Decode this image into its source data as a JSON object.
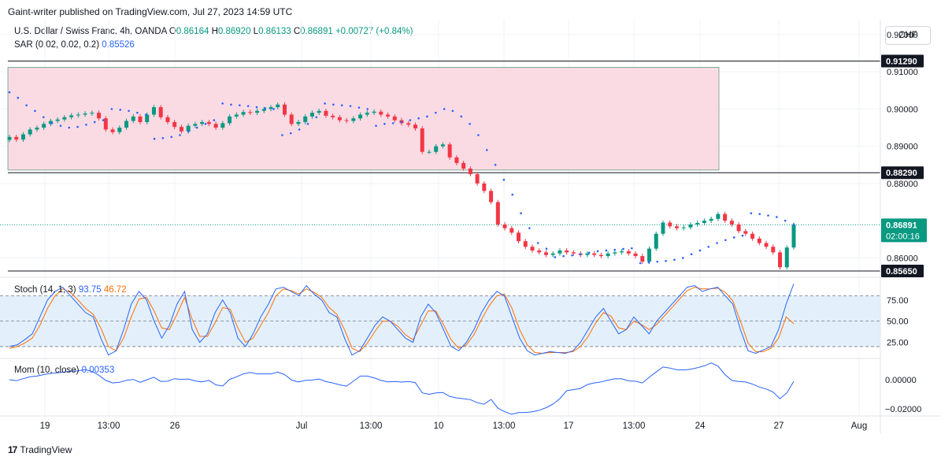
{
  "header": {
    "publisher": "Gaint-writer published on TradingView.com, Jul 27, 2023 14:59 UTC"
  },
  "legend": {
    "symbol": "U.S. Dollar / Swiss Franc, 4h, OANDA",
    "open_label": "O",
    "open": "0.86164",
    "high_label": "H",
    "high": "0.86920",
    "low_label": "L",
    "low": "0.86133",
    "close_label": "C",
    "close": "0.86891",
    "change": "+0.00727 (+0.84%)",
    "sar_name": "SAR (0.02, 0.02, 0.2)",
    "sar_value": "0.85526"
  },
  "currency_button": "CHF",
  "stoch": {
    "name": "Stoch (14, 1, 3)",
    "k": "93.75",
    "d": "46.72"
  },
  "mom": {
    "name": "Mom (10, close)",
    "value": "0.00353"
  },
  "footer": {
    "brand": "TradingView",
    "logo": "17"
  },
  "colors": {
    "up": "#089981",
    "down": "#f23645",
    "sar": "#2962ff",
    "zone": "#fadbe4",
    "stoch_k": "#2962ff",
    "stoch_d": "#ff6d00",
    "stoch_bg": "#e3f0fb"
  },
  "chart_data": {
    "type": "candlestick",
    "price_axis": {
      "ticks": [
        "0.92000",
        "0.91000",
        "0.90000",
        "0.89000",
        "0.88000",
        "0.86000"
      ],
      "range": [
        0.8548,
        0.924
      ]
    },
    "levels": [
      {
        "label": "0.91290",
        "value": 0.9129
      },
      {
        "label": "0.88290",
        "value": 0.8829
      },
      {
        "label": "0.85650",
        "value": 0.8565
      }
    ],
    "current_price": {
      "label": "0.86891",
      "countdown": "02:00:16",
      "value": 0.86891
    },
    "supply_zone": {
      "top": 0.9112,
      "bottom": 0.8836
    },
    "x_axis": {
      "labels": [
        "19",
        "13:00",
        "26",
        "Jul",
        "13:00",
        "10",
        "13:00",
        "17",
        "13:00",
        "24",
        "27",
        "Aug"
      ]
    },
    "candles_close": [
      0.8925,
      0.8918,
      0.8932,
      0.8945,
      0.895,
      0.896,
      0.8968,
      0.8972,
      0.8978,
      0.8983,
      0.8985,
      0.8988,
      0.899,
      0.8975,
      0.8945,
      0.8938,
      0.895,
      0.8968,
      0.898,
      0.8965,
      0.8985,
      0.9005,
      0.8978,
      0.8965,
      0.8952,
      0.894,
      0.8955,
      0.896,
      0.8965,
      0.896,
      0.895,
      0.8962,
      0.898,
      0.8985,
      0.8992,
      0.899,
      0.8995,
      0.9,
      0.9005,
      0.9012,
      0.8985,
      0.896,
      0.8965,
      0.898,
      0.899,
      0.8995,
      0.8982,
      0.8978,
      0.897,
      0.8968,
      0.8975,
      0.8985,
      0.899,
      0.8993,
      0.8985,
      0.898,
      0.897,
      0.8962,
      0.8958,
      0.8948,
      0.8885,
      0.8885,
      0.89,
      0.8905,
      0.887,
      0.8855,
      0.884,
      0.8825,
      0.88,
      0.878,
      0.875,
      0.869,
      0.868,
      0.8668,
      0.8645,
      0.863,
      0.862,
      0.8615,
      0.8608,
      0.8612,
      0.862,
      0.8615,
      0.8612,
      0.8608,
      0.8612,
      0.8608,
      0.8605,
      0.8612,
      0.8615,
      0.8618,
      0.8612,
      0.8605,
      0.859,
      0.8625,
      0.8665,
      0.8695,
      0.8685,
      0.868,
      0.8682,
      0.869,
      0.8694,
      0.87,
      0.8705,
      0.8718,
      0.87,
      0.869,
      0.8672,
      0.8665,
      0.8652,
      0.864,
      0.863,
      0.8615,
      0.8575,
      0.8628,
      0.8689
    ],
    "sar_values": [
      0.9045,
      0.903,
      0.901,
      0.8995,
      0.8978,
      0.8962,
      0.8955,
      0.895,
      0.8952,
      0.8958,
      0.8965,
      0.897,
      0.9,
      0.8998,
      0.8995,
      0.899,
      0.8985,
      0.892,
      0.8922,
      0.8925,
      0.893,
      0.894,
      0.895,
      0.896,
      0.897,
      0.9015,
      0.9012,
      0.901,
      0.9008,
      0.9005,
      0.9002,
      0.9,
      0.893,
      0.8935,
      0.8945,
      0.896,
      0.8978,
      0.9015,
      0.9012,
      0.901,
      0.9008,
      0.9004,
      0.9,
      0.8955,
      0.896,
      0.8962,
      0.8965,
      0.897,
      0.8975,
      0.898,
      0.899,
      0.9,
      0.8995,
      0.898,
      0.896,
      0.893,
      0.889,
      0.885,
      0.881,
      0.877,
      0.872,
      0.868,
      0.864,
      0.8625,
      0.8602,
      0.8605,
      0.8607,
      0.861,
      0.8614,
      0.8618,
      0.862,
      0.8622,
      0.8624,
      0.8626,
      0.8586,
      0.8588,
      0.859,
      0.8592,
      0.8595,
      0.86,
      0.861,
      0.862,
      0.863,
      0.864,
      0.8648,
      0.8655,
      0.866,
      0.872,
      0.8718,
      0.8714,
      0.871,
      0.87,
      0.869
    ],
    "stoch_k": [
      20,
      22,
      28,
      35,
      55,
      75,
      85,
      90,
      80,
      70,
      60,
      55,
      30,
      10,
      15,
      40,
      70,
      85,
      75,
      50,
      30,
      45,
      70,
      85,
      40,
      25,
      35,
      60,
      75,
      60,
      30,
      20,
      35,
      55,
      70,
      88,
      90,
      85,
      80,
      92,
      82,
      75,
      60,
      55,
      30,
      10,
      15,
      30,
      45,
      55,
      50,
      40,
      30,
      25,
      55,
      70,
      60,
      40,
      20,
      15,
      25,
      40,
      60,
      75,
      85,
      80,
      55,
      30,
      15,
      10,
      12,
      14,
      13,
      12,
      15,
      25,
      40,
      55,
      65,
      50,
      35,
      40,
      55,
      45,
      35,
      50,
      60,
      70,
      80,
      90,
      92,
      85,
      88,
      90,
      80,
      70,
      40,
      15,
      12,
      16,
      20,
      40,
      70,
      94
    ],
    "stoch_d": [
      18,
      20,
      24,
      30,
      45,
      65,
      80,
      88,
      84,
      75,
      65,
      58,
      42,
      20,
      15,
      30,
      55,
      76,
      78,
      62,
      42,
      40,
      58,
      78,
      52,
      32,
      32,
      48,
      66,
      64,
      42,
      25,
      30,
      45,
      60,
      80,
      88,
      86,
      82,
      88,
      84,
      78,
      66,
      58,
      40,
      18,
      14,
      24,
      38,
      50,
      50,
      44,
      34,
      28,
      45,
      62,
      62,
      46,
      28,
      18,
      22,
      34,
      52,
      68,
      80,
      82,
      65,
      40,
      22,
      13,
      12,
      13,
      13,
      13,
      14,
      20,
      32,
      48,
      60,
      56,
      42,
      40,
      50,
      46,
      40,
      46,
      56,
      66,
      76,
      86,
      90,
      88,
      88,
      89,
      84,
      74,
      50,
      24,
      14,
      14,
      18,
      30,
      55,
      47
    ]
  }
}
